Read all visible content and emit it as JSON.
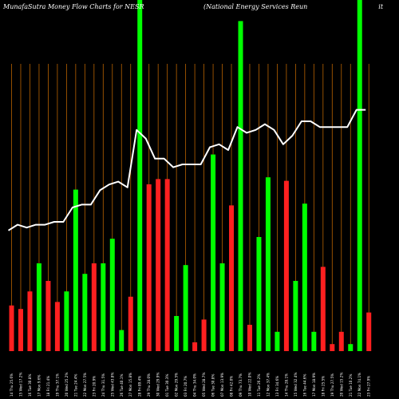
{
  "header": {
    "left": "MunafaSutra  Money Flow  Charts for NESR",
    "right": "(National Energy Services Reun                                   it"
  },
  "chart_data": {
    "type": "bar+line",
    "title": "MunafaSutra  Money Flow  Charts for NESR",
    "subtitle": "(National Energy Services Reun                                   it",
    "colors": {
      "up": "#00ff00",
      "down": "#ff2020",
      "line": "#ffffff",
      "grid": "#b86200",
      "background": "#000000"
    },
    "bar_max": 100,
    "bars": [
      {
        "value": 13,
        "dir": "down"
      },
      {
        "value": 12,
        "dir": "down"
      },
      {
        "value": 17,
        "dir": "down"
      },
      {
        "value": 25,
        "dir": "up"
      },
      {
        "value": 20,
        "dir": "down"
      },
      {
        "value": 14,
        "dir": "down"
      },
      {
        "value": 17,
        "dir": "up"
      },
      {
        "value": 46,
        "dir": "up"
      },
      {
        "value": 22,
        "dir": "up"
      },
      {
        "value": 25,
        "dir": "down"
      },
      {
        "value": 25,
        "dir": "up"
      },
      {
        "value": 32,
        "dir": "up"
      },
      {
        "value": 6,
        "dir": "up"
      },
      {
        "value": 15.5,
        "dir": "down"
      },
      {
        "value": 100,
        "dir": "up"
      },
      {
        "value": 47.5,
        "dir": "down"
      },
      {
        "value": 49,
        "dir": "down"
      },
      {
        "value": 49,
        "dir": "down"
      },
      {
        "value": 10,
        "dir": "up"
      },
      {
        "value": 24.5,
        "dir": "up"
      },
      {
        "value": 2.5,
        "dir": "down"
      },
      {
        "value": 9,
        "dir": "down"
      },
      {
        "value": 56,
        "dir": "up"
      },
      {
        "value": 25,
        "dir": "up"
      },
      {
        "value": 41.5,
        "dir": "down"
      },
      {
        "value": 94,
        "dir": "up"
      },
      {
        "value": 7.5,
        "dir": "down"
      },
      {
        "value": 32.5,
        "dir": "up"
      },
      {
        "value": 49.5,
        "dir": "up"
      },
      {
        "value": 5.5,
        "dir": "up"
      },
      {
        "value": 48.5,
        "dir": "down"
      },
      {
        "value": 20,
        "dir": "up"
      },
      {
        "value": 42,
        "dir": "up"
      },
      {
        "value": 5.5,
        "dir": "up"
      },
      {
        "value": 24,
        "dir": "down"
      },
      {
        "value": 2,
        "dir": "down"
      },
      {
        "value": 5.5,
        "dir": "down"
      },
      {
        "value": 2,
        "dir": "up"
      },
      {
        "value": 100,
        "dir": "up"
      },
      {
        "value": 11,
        "dir": "down"
      }
    ],
    "line": [
      42,
      44,
      43,
      44,
      44,
      45,
      45,
      50,
      51,
      51,
      56,
      58,
      59,
      57,
      77,
      74,
      67,
      67,
      64,
      65,
      65,
      65,
      71,
      72,
      70,
      78,
      76,
      77,
      79,
      77,
      72,
      75,
      80,
      80,
      78,
      78,
      78,
      78,
      84,
      84
    ],
    "x_tick_labels": [
      "14 Thu 25.6%",
      "15 Wed 17.2%",
      "16 Tue 30.8%",
      "17 Mon 9.6%",
      "18 Fri 21.4%",
      "19 Thu 37.1%",
      "20 Wed 25.2%",
      "21 Tue 24.4%",
      "22 Mon 27.5%",
      "23 Fri 20.9%",
      "24 Thu 31.5%",
      "25 Wed 43.8%",
      "26 Tue 40.1%",
      "27 Mon 15.8%",
      "28 Fri 89.4%",
      "29 Thu 28.0%",
      "30 Wed 29.9%",
      "01 Tue 30.3%",
      "02 Mon 29.5%",
      "03 Fri 20.7%",
      "04 Thu 34.0%",
      "05 Wed 28.7%",
      "06 Tue 30.8%",
      "07 Mon 13.9%",
      "08 Fri 42.0%",
      "09 Thu 73.7%",
      "10 Wed 22.0%",
      "11 Tue 26.2%",
      "12 Mon 37.4%",
      "13 Fri 34.6%",
      "14 Thu 28.1%",
      "15 Wed 32.4%",
      "16 Tue 44.6%",
      "17 Mon 18.9%",
      "18 Fri 25.5%",
      "19 Thu 27.5%",
      "20 Wed 15.2%",
      "21 Tue 10.2%",
      "22 Mon 74.1%",
      "23 Fri 27.9%"
    ]
  }
}
